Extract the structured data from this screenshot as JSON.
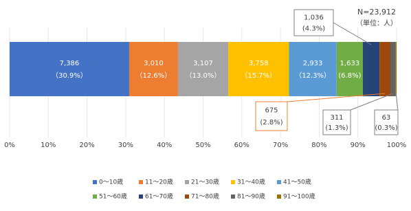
{
  "chart_data": {
    "type": "stacked-bar-100",
    "annotations": [
      "N=23,912",
      "（単位：人）"
    ],
    "xlim": [
      0,
      100
    ],
    "xticks": [
      {
        "value": 0,
        "label": "0%"
      },
      {
        "value": 10,
        "label": "10%"
      },
      {
        "value": 20,
        "label": "20%"
      },
      {
        "value": 30,
        "label": "30%"
      },
      {
        "value": 40,
        "label": "40%"
      },
      {
        "value": 50,
        "label": "50%"
      },
      {
        "value": 60,
        "label": "60%"
      },
      {
        "value": 70,
        "label": "70%"
      },
      {
        "value": 80,
        "label": "80%"
      },
      {
        "value": 90,
        "label": "90%"
      },
      {
        "value": 100,
        "label": "100%"
      }
    ],
    "grid": true,
    "series": [
      {
        "name": "0～10歳",
        "color": "#4472c4",
        "values": [
          30.9
        ],
        "value_labels": [
          "（30.9%）"
        ],
        "count_labels": [
          "7,386"
        ]
      },
      {
        "name": "11～20歳",
        "color": "#ed7d31",
        "values": [
          12.6
        ],
        "value_labels": [
          "（12.6%）"
        ],
        "count_labels": [
          "3,010"
        ]
      },
      {
        "name": "21～30歳",
        "color": "#a5a5a5",
        "values": [
          13.0
        ],
        "value_labels": [
          "（13.0%）"
        ],
        "count_labels": [
          "3,107"
        ]
      },
      {
        "name": "31～40歳",
        "color": "#ffc000",
        "values": [
          15.7
        ],
        "value_labels": [
          "（15.7%）"
        ],
        "count_labels": [
          "3,758"
        ]
      },
      {
        "name": "41～50歳",
        "color": "#5b9bd5",
        "values": [
          12.3
        ],
        "value_labels": [
          "（12.3%）"
        ],
        "count_labels": [
          "2,933"
        ]
      },
      {
        "name": "51～60歳",
        "color": "#70ad47",
        "values": [
          6.8
        ],
        "value_labels": [
          "(6.8%)"
        ],
        "count_labels": [
          "1,633"
        ]
      },
      {
        "name": "61～70歳",
        "color": "#264478",
        "values": [
          4.3
        ],
        "value_labels": [
          "(4.3%)"
        ],
        "count_labels": [
          "1,036"
        ]
      },
      {
        "name": "71～80歳",
        "color": "#9e480e",
        "values": [
          2.8
        ],
        "value_labels": [
          "(2.8%)"
        ],
        "count_labels": [
          "675"
        ]
      },
      {
        "name": "81～90歳",
        "color": "#636363",
        "values": [
          1.3
        ],
        "value_labels": [
          "(1.3%)"
        ],
        "count_labels": [
          "311"
        ]
      },
      {
        "name": "91～100歳",
        "color": "#997300",
        "values": [
          0.3
        ],
        "value_labels": [
          "(0.3%)"
        ],
        "count_labels": [
          "63"
        ]
      }
    ]
  }
}
